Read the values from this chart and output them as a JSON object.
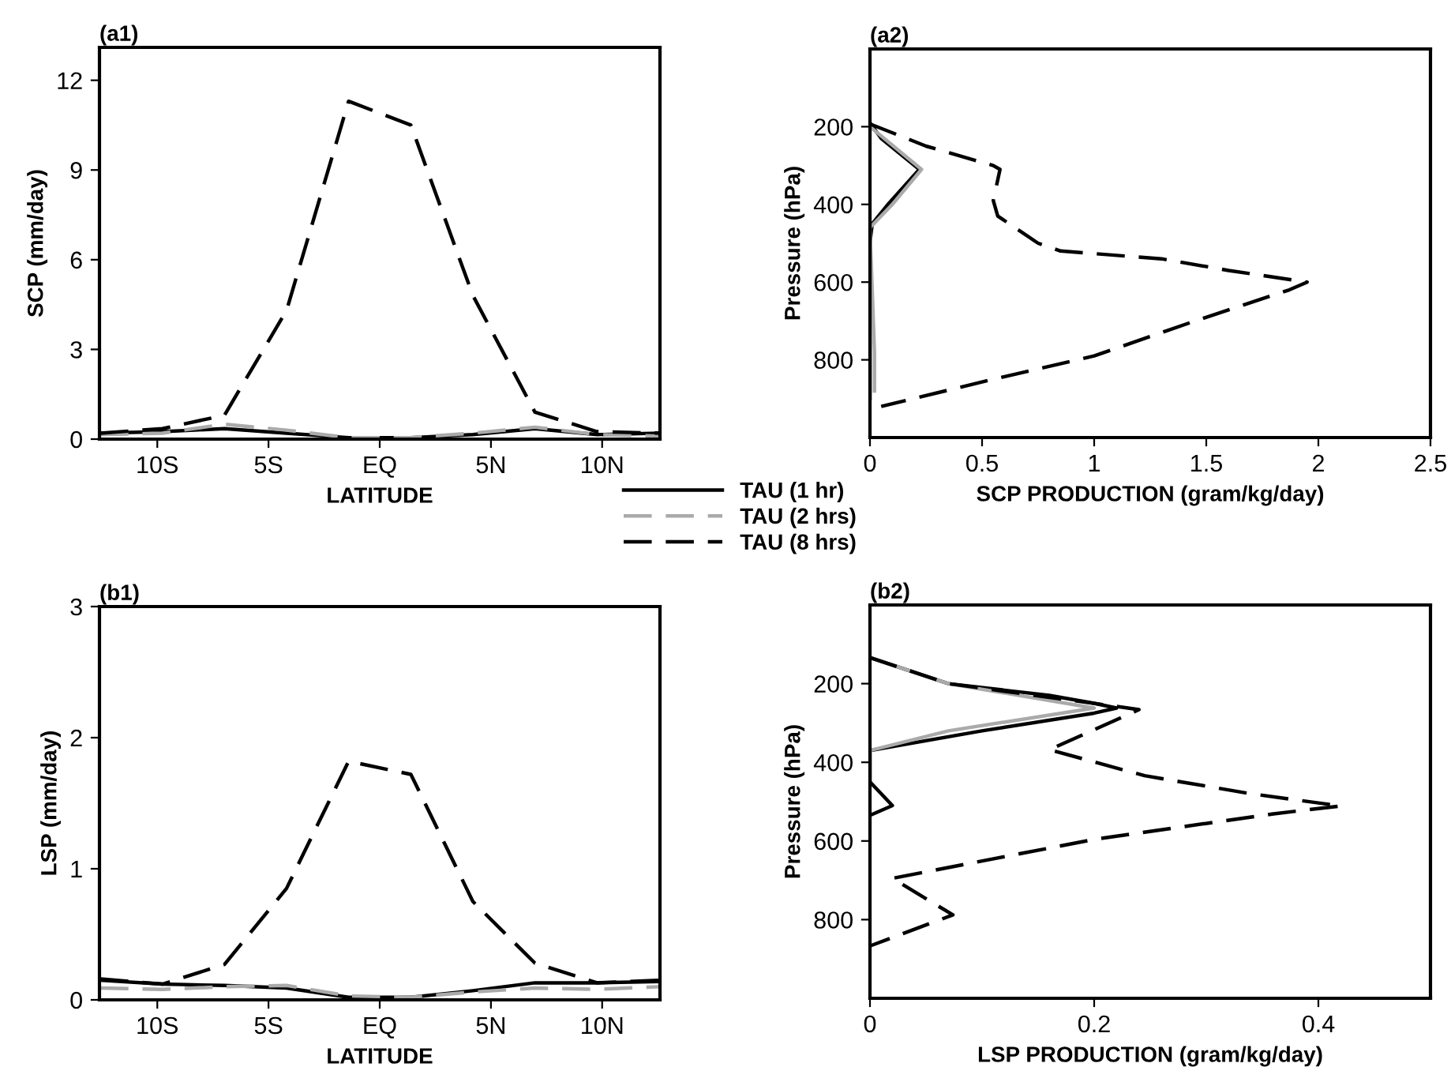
{
  "chart_data": [
    {
      "type": "line",
      "title": "(a1)",
      "xlabel": "LATITUDE",
      "ylabel": "SCP (mm/day)",
      "xlim": [
        -12.6,
        12.6
      ],
      "xticks": [
        {
          "value": -10,
          "label": "10S"
        },
        {
          "value": -5,
          "label": "5S"
        },
        {
          "value": 0,
          "label": "EQ"
        },
        {
          "value": 5,
          "label": "5N"
        },
        {
          "value": 10,
          "label": "10N"
        }
      ],
      "ylim": [
        0,
        13.1
      ],
      "yticks": [
        0,
        3,
        6,
        9,
        12
      ],
      "grid": false,
      "legend": "bottom right",
      "x": [
        -12.56,
        -9.77,
        -6.98,
        -4.19,
        -1.4,
        1.4,
        4.19,
        6.98,
        9.77,
        12.56
      ],
      "series": [
        {
          "name": "TAU (1 hr)",
          "color": "#000000",
          "line_style": "solid",
          "values": [
            0.2,
            0.25,
            0.35,
            0.2,
            0.05,
            0.05,
            0.15,
            0.35,
            0.15,
            0.2
          ]
        },
        {
          "name": "TAU (2 hrs)",
          "color": "#aaaaaa",
          "line_style": "dashed",
          "values": [
            0.15,
            0.2,
            0.5,
            0.3,
            0.05,
            0.05,
            0.2,
            0.4,
            0.15,
            0.1
          ]
        },
        {
          "name": "TAU (8 hrs)",
          "color": "#000000",
          "line_style": "dashed",
          "values": [
            0.2,
            0.35,
            0.8,
            4.3,
            11.3,
            10.5,
            4.8,
            0.9,
            0.25,
            0.2
          ]
        }
      ]
    },
    {
      "type": "line",
      "title": "(a2)",
      "xlabel": "SCP PRODUCTION (gram/kg/day)",
      "ylabel": "Pressure (hPa)",
      "xlim": [
        0,
        2.5
      ],
      "xticks": [
        0,
        0.5,
        1,
        1.5,
        2,
        2.5
      ],
      "ylim": [
        1000,
        0
      ],
      "yticks": [
        200,
        400,
        600,
        800
      ],
      "grid": false,
      "series": [
        {
          "color": "#000000",
          "line_style": "solid",
          "x": [
            0,
            0.05,
            0.22,
            0.08,
            0.01,
            0,
            0,
            0
          ],
          "values": [
            190,
            230,
            310,
            400,
            450,
            500,
            780,
            900
          ]
        },
        {
          "color": "#aaaaaa",
          "line_style": "solid",
          "x": [
            0,
            0.23,
            0.1,
            0,
            0.02,
            0.02
          ],
          "values": [
            200,
            310,
            400,
            460,
            780,
            880
          ]
        },
        {
          "color": "#000000",
          "line_style": "dashed",
          "x": [
            0,
            0.25,
            0.55,
            0.58,
            0.55,
            0.57,
            0.75,
            0.85,
            1.3,
            1.6,
            1.95,
            1.87,
            1.45,
            1.0,
            0.55,
            0.05
          ],
          "values": [
            193,
            250,
            300,
            310,
            390,
            430,
            500,
            520,
            540,
            570,
            600,
            620,
            700,
            790,
            850,
            920
          ]
        }
      ]
    },
    {
      "type": "line",
      "title": "(b1)",
      "xlabel": "LATITUDE",
      "ylabel": "LSP (mm/day)",
      "xlim": [
        -12.6,
        12.6
      ],
      "xticks": [
        {
          "value": -10,
          "label": "10S"
        },
        {
          "value": -5,
          "label": "5S"
        },
        {
          "value": 0,
          "label": "EQ"
        },
        {
          "value": 5,
          "label": "5N"
        },
        {
          "value": 10,
          "label": "10N"
        }
      ],
      "ylim": [
        0,
        3
      ],
      "yticks": [
        0,
        1,
        2,
        3
      ],
      "grid": false,
      "x": [
        -12.56,
        -9.77,
        -6.98,
        -4.19,
        -1.4,
        1.4,
        4.19,
        6.98,
        9.77,
        12.56
      ],
      "series": [
        {
          "color": "#000000",
          "line_style": "solid",
          "values": [
            0.15,
            0.12,
            0.11,
            0.09,
            0.02,
            0.02,
            0.07,
            0.13,
            0.13,
            0.14
          ]
        },
        {
          "color": "#aaaaaa",
          "line_style": "dashed",
          "values": [
            0.09,
            0.08,
            0.1,
            0.11,
            0.03,
            0.02,
            0.06,
            0.09,
            0.08,
            0.1
          ]
        },
        {
          "color": "#000000",
          "line_style": "dashed",
          "values": [
            0.16,
            0.12,
            0.27,
            0.85,
            1.82,
            1.72,
            0.75,
            0.28,
            0.13,
            0.15
          ]
        }
      ]
    },
    {
      "type": "line",
      "title": "(b2)",
      "xlabel": "LSP PRODUCTION (gram/kg/day)",
      "ylabel": "Pressure (hPa)",
      "xlim": [
        0,
        0.5
      ],
      "xticks": [
        0,
        0.2,
        0.4
      ],
      "ylim": [
        1000,
        0
      ],
      "yticks": [
        200,
        400,
        600,
        800
      ],
      "grid": false,
      "series": [
        {
          "color": "#000000",
          "line_style": "solid",
          "x": [
            0,
            0.07,
            0.16,
            0.2,
            0.22,
            0.2,
            0.1,
            0,
            0,
            0.02,
            0
          ],
          "values": [
            134,
            200,
            230,
            250,
            262,
            275,
            320,
            370,
            450,
            510,
            535
          ]
        },
        {
          "color": "#aaaaaa",
          "line_style": "solid",
          "x": [
            0,
            0.07,
            0.2,
            0.07,
            0
          ],
          "values": [
            134,
            200,
            262,
            320,
            370
          ]
        },
        {
          "color": "#000000",
          "line_style": "dashed",
          "x": [
            0,
            0.07,
            0.215,
            0.24,
            0.16,
            0.245,
            0.34,
            0.42,
            0.36,
            0.2,
            0.02,
            0.074,
            0
          ],
          "values": [
            134,
            200,
            256,
            266,
            368,
            434,
            480,
            511,
            531,
            596,
            695,
            788,
            867
          ]
        }
      ]
    }
  ]
}
